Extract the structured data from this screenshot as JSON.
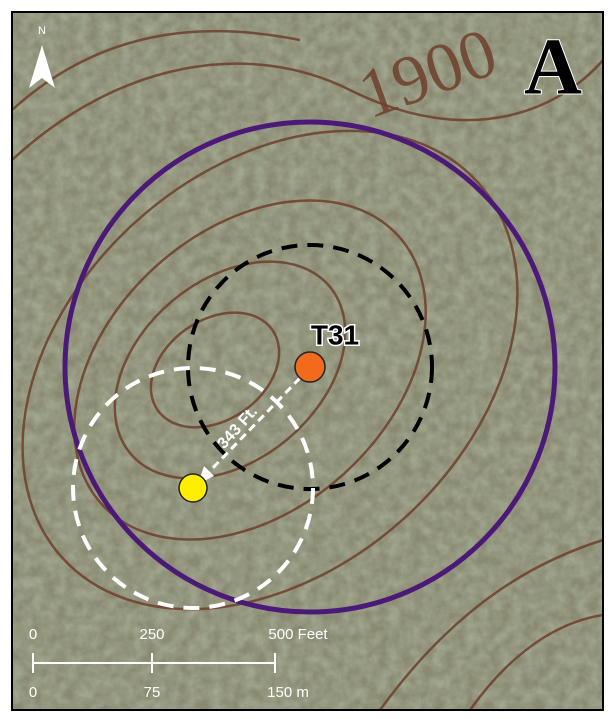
{
  "panel_label": "A",
  "north_arrow": {
    "label": "N"
  },
  "contour_label": "1900",
  "site": {
    "label": "T31"
  },
  "offset": {
    "label": "343 Ft."
  },
  "scale_bar": {
    "feet": {
      "labels": [
        "0",
        "250",
        "500 Feet"
      ]
    },
    "meters": {
      "labels": [
        "0",
        "75",
        "150 m"
      ]
    }
  }
}
